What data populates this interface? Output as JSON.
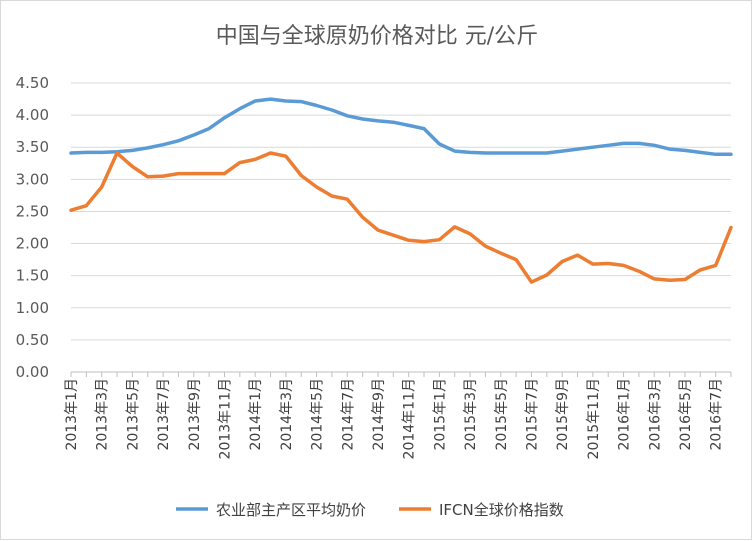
{
  "chart_data": {
    "type": "line",
    "title": "中国与全球原奶价格对比 元/公斤",
    "xlabel": "",
    "ylabel": "",
    "ylim": [
      0,
      4.5
    ],
    "y_ticks": [
      "0.00",
      "0.50",
      "1.00",
      "1.50",
      "2.00",
      "2.50",
      "3.00",
      "3.50",
      "4.00",
      "4.50"
    ],
    "grid": true,
    "legend_position": "bottom",
    "x_tick_labels": [
      "2013年1月",
      "2013年3月",
      "2013年5月",
      "2013年7月",
      "2013年9月",
      "2013年11月",
      "2014年1月",
      "2014年3月",
      "2014年5月",
      "2014年7月",
      "2014年9月",
      "2014年11月",
      "2015年1月",
      "2015年3月",
      "2015年5月",
      "2015年7月",
      "2015年9月",
      "2015年11月",
      "2016年1月",
      "2016年3月",
      "2016年5月",
      "2016年7月"
    ],
    "x": [
      "2013-01",
      "2013-02",
      "2013-03",
      "2013-04",
      "2013-05",
      "2013-06",
      "2013-07",
      "2013-08",
      "2013-09",
      "2013-10",
      "2013-11",
      "2013-12",
      "2014-01",
      "2014-02",
      "2014-03",
      "2014-04",
      "2014-05",
      "2014-06",
      "2014-07",
      "2014-08",
      "2014-09",
      "2014-10",
      "2014-11",
      "2014-12",
      "2015-01",
      "2015-02",
      "2015-03",
      "2015-04",
      "2015-05",
      "2015-06",
      "2015-07",
      "2015-08",
      "2015-09",
      "2015-10",
      "2015-11",
      "2015-12",
      "2016-01",
      "2016-02",
      "2016-03",
      "2016-04",
      "2016-05",
      "2016-06",
      "2016-07",
      "2016-08"
    ],
    "series": [
      {
        "name": "农业部主产区平均奶价",
        "color": "#5b9bd5",
        "values": [
          3.41,
          3.42,
          3.42,
          3.43,
          3.45,
          3.49,
          3.54,
          3.6,
          3.69,
          3.79,
          3.96,
          4.1,
          4.22,
          4.25,
          4.22,
          4.21,
          4.15,
          4.08,
          3.99,
          3.94,
          3.91,
          3.89,
          3.84,
          3.79,
          3.55,
          3.44,
          3.42,
          3.41,
          3.41,
          3.41,
          3.41,
          3.41,
          3.44,
          3.47,
          3.5,
          3.53,
          3.56,
          3.56,
          3.53,
          3.47,
          3.45,
          3.42,
          3.39,
          3.39
        ]
      },
      {
        "name": "IFCN全球价格指数",
        "color": "#ed7d31",
        "values": [
          2.52,
          2.59,
          2.88,
          3.41,
          3.2,
          3.04,
          3.05,
          3.09,
          3.09,
          3.09,
          3.09,
          3.26,
          3.31,
          3.41,
          3.36,
          3.06,
          2.88,
          2.74,
          2.69,
          2.41,
          2.21,
          2.13,
          2.05,
          2.03,
          2.06,
          2.26,
          2.15,
          1.96,
          1.85,
          1.75,
          1.4,
          1.51,
          1.72,
          1.82,
          1.68,
          1.69,
          1.66,
          1.57,
          1.45,
          1.43,
          1.44,
          1.59,
          1.66,
          2.25
        ]
      }
    ]
  }
}
